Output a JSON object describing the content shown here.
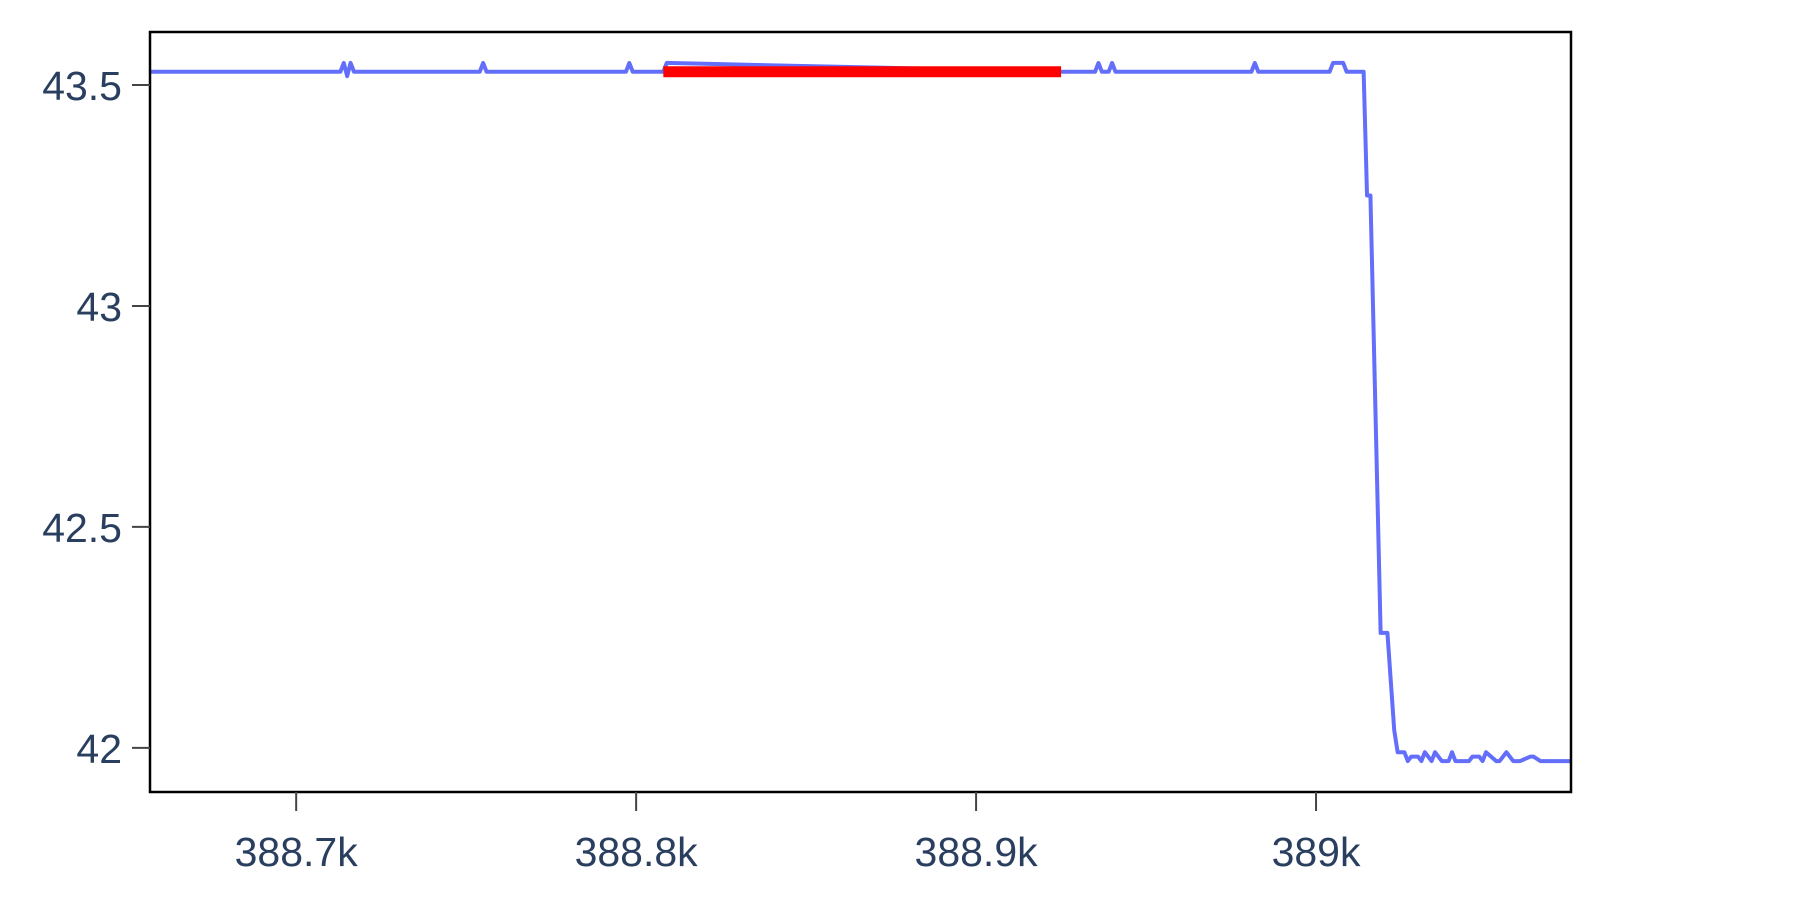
{
  "chart_data": {
    "type": "line",
    "title": "",
    "xlabel": "",
    "ylabel": "",
    "xlim": [
      388657,
      389075
    ],
    "ylim": [
      41.9,
      43.62
    ],
    "x_ticks": [
      {
        "value": 388700,
        "label": "388.7k"
      },
      {
        "value": 388800,
        "label": "388.8k"
      },
      {
        "value": 388900,
        "label": "388.9k"
      },
      {
        "value": 389000,
        "label": "389k"
      }
    ],
    "y_ticks": [
      {
        "value": 42,
        "label": "42"
      },
      {
        "value": 42.5,
        "label": "42.5"
      },
      {
        "value": 43,
        "label": "43"
      },
      {
        "value": 43.5,
        "label": "43.5"
      }
    ],
    "grid": false,
    "legend": "none",
    "series": [
      {
        "color": "#636efa",
        "x": [
          388657,
          388713,
          388714,
          388715,
          388716,
          388717,
          388754,
          388755,
          388756,
          388797,
          388798,
          388799,
          388808,
          388809,
          388925,
          388935,
          388936,
          388937,
          388939,
          388940,
          388941,
          388981,
          388982,
          388983,
          389004,
          389005,
          389008,
          389009,
          389014,
          389015,
          389016,
          389019,
          389021,
          389023,
          389024,
          389025,
          389026,
          389027,
          389028,
          389030,
          389031,
          389032,
          389034,
          389035,
          389037,
          389039,
          389040,
          389041,
          389044,
          389045,
          389046,
          389048,
          389049,
          389050,
          389053,
          389054,
          389056,
          389058,
          389059,
          389060,
          389063,
          389064,
          389066,
          389068,
          389069,
          389071,
          389075
        ],
        "y": [
          43.53,
          43.53,
          43.55,
          43.52,
          43.55,
          43.53,
          43.53,
          43.55,
          43.53,
          43.53,
          43.55,
          43.53,
          43.53,
          43.55,
          43.53,
          43.53,
          43.55,
          43.53,
          43.53,
          43.55,
          43.53,
          43.53,
          43.55,
          43.53,
          43.53,
          43.55,
          43.55,
          43.53,
          43.53,
          43.25,
          43.25,
          42.26,
          42.26,
          42.04,
          41.99,
          41.99,
          41.99,
          41.97,
          41.98,
          41.98,
          41.97,
          41.99,
          41.97,
          41.99,
          41.97,
          41.97,
          41.99,
          41.97,
          41.97,
          41.97,
          41.98,
          41.98,
          41.97,
          41.99,
          41.97,
          41.97,
          41.99,
          41.97,
          41.97,
          41.97,
          41.98,
          41.98,
          41.97,
          41.97,
          41.97,
          41.97,
          41.97
        ]
      },
      {
        "color": "#ff0000",
        "x": [
          388808,
          388925
        ],
        "y": [
          43.53,
          43.53
        ]
      }
    ]
  }
}
